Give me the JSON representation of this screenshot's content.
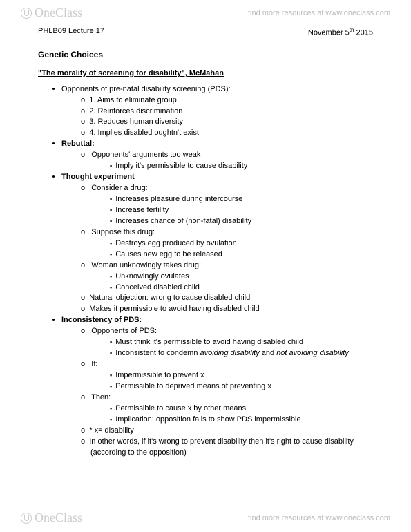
{
  "brand": {
    "name": "OneClass",
    "tagline": "find more resources at www.oneclass.com"
  },
  "meta": {
    "course": "PHLB09 Lecture 17",
    "date_prefix": "November 5",
    "date_suffix": "th",
    "date_year": " 2015"
  },
  "title": "Genetic Choices",
  "subtitle": "\"The morality of screening for disability\", McMahan",
  "s1": {
    "head": "Opponents of pre-natal disability screening (PDS):",
    "a": "1. Aims to eliminate group",
    "b": "2. Reinforces discrimination",
    "c": "3. Reduces human diversity",
    "d": "4. Implies disabled oughtn't exist"
  },
  "s2": {
    "head": "Rebuttal:",
    "a": "Opponents' arguments too weak",
    "a1": "Imply it's permissible to cause disability"
  },
  "s3": {
    "head": "Thought experiment",
    "a": "Consider a drug:",
    "a1": "Increases pleasure during intercourse",
    "a2": "Increase fertility",
    "a3": "Increases chance of (non-fatal) disability",
    "b": "Suppose this drug:",
    "b1": "Destroys egg produced by ovulation",
    "b2": "Causes new egg to be released",
    "c": "Woman unknowingly takes drug:",
    "c1": "Unknowingly ovulates",
    "c2": "Conceived disabled child",
    "d": "Natural objection: wrong to cause disabled child",
    "e": "Makes it permissible to avoid having disabled child"
  },
  "s4": {
    "head": "Inconsistency of PDS:",
    "a": "Opponents of PDS:",
    "a1": "Must think it's permissible to avoid having disabled child",
    "a2a": "Inconsistent to condemn ",
    "a2b": "avoiding disability",
    "a2c": " and ",
    "a2d": "not avoiding disability",
    "b": "If:",
    "b1": "Impermissible to prevent x",
    "b2": "Permissible to deprived means of preventing x",
    "c": "Then:",
    "c1": "Permissible to cause x by other means",
    "c2": "Implication: opposition fails to show PDS impermissible",
    "d": "* x= disability",
    "e": "In other words, if it's wrong to prevent disability then it's right to cause disability (according to the opposition)"
  }
}
